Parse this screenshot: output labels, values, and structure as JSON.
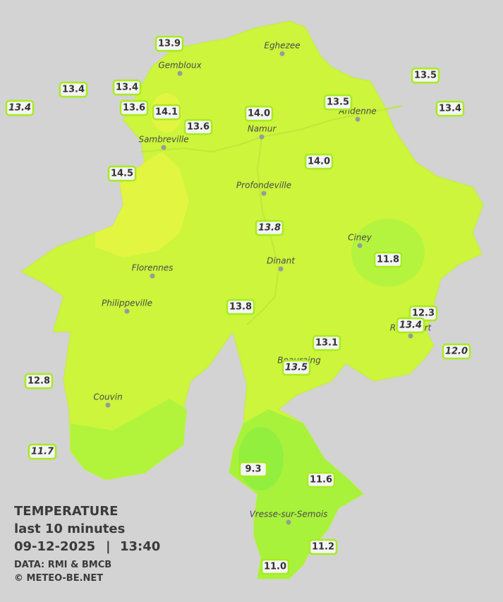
{
  "legend": {
    "title": "TEMPERATURE",
    "subtitle": "last 10 minutes",
    "date": "09-12-2025",
    "separator": "|",
    "time": "13:40",
    "source": "DATA: RMI & BMCB",
    "copyright": "© METEO-BE.NET"
  },
  "cities": [
    "Eghezee",
    "Gembloux",
    "Andenne",
    "Namur",
    "Sambreville",
    "Profondeville",
    "Ciney",
    "Dinant",
    "Florennes",
    "Philippeville",
    "Rochefort",
    "Beauraing",
    "Couvin",
    "Vresse-sur-Semois"
  ],
  "stations": [
    "13.9",
    "13.4",
    "13.4",
    "13.4",
    "13.6",
    "14.1",
    "13.6",
    "14.0",
    "13.5",
    "13.5",
    "13.4",
    "14.0",
    "14.5",
    "13.8",
    "11.8",
    "13.8",
    "12.3",
    "13.4",
    "12.0",
    "13.1",
    "13.5",
    "12.8",
    "11.7",
    "9.3",
    "11.6",
    "11.2",
    "11.0"
  ]
}
